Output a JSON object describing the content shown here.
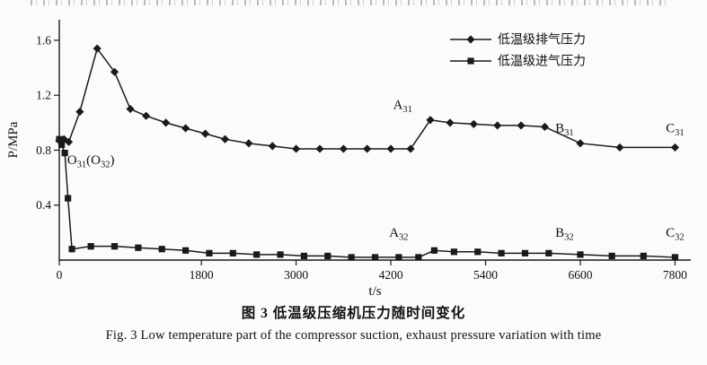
{
  "figure": {
    "caption_cn": "图 3  低温级压缩机压力随时间变化",
    "caption_en": "Fig. 3  Low temperature part of the compressor suction, exhaust pressure variation with time"
  },
  "chart_data": {
    "type": "line",
    "title": "",
    "xlabel": "t/s",
    "ylabel": "P/MPa",
    "xlim": [
      0,
      8000
    ],
    "ylim": [
      0,
      1.75
    ],
    "xticks": [
      0,
      1800,
      3000,
      4200,
      5400,
      6600,
      7800
    ],
    "xtick_labels": [
      "0",
      "1800",
      "3000",
      "4200",
      "5400",
      "6600",
      "7800"
    ],
    "yticks": [
      0.4,
      0.8,
      1.2,
      1.6
    ],
    "ytick_labels": [
      "0.4",
      "0.8",
      "1.2",
      "1.6"
    ],
    "grid": false,
    "legend_position": "top-right",
    "line_color": "#1a1a1a",
    "series": [
      {
        "name": "低温级排气压力",
        "marker": "diamond",
        "x": [
          0,
          60,
          120,
          260,
          480,
          700,
          900,
          1100,
          1350,
          1600,
          1850,
          2100,
          2400,
          2700,
          3000,
          3300,
          3600,
          3900,
          4200,
          4450,
          4700,
          4950,
          5250,
          5550,
          5850,
          6150,
          6600,
          7100,
          7800
        ],
        "y": [
          0.87,
          0.88,
          0.86,
          1.08,
          1.54,
          1.37,
          1.1,
          1.05,
          1.0,
          0.96,
          0.92,
          0.88,
          0.85,
          0.83,
          0.81,
          0.81,
          0.81,
          0.81,
          0.81,
          0.81,
          1.02,
          1.0,
          0.99,
          0.98,
          0.98,
          0.97,
          0.85,
          0.82,
          0.82
        ]
      },
      {
        "name": "低温级进气压力",
        "marker": "square",
        "x": [
          0,
          30,
          70,
          110,
          160,
          400,
          700,
          1000,
          1300,
          1600,
          1900,
          2200,
          2500,
          2800,
          3100,
          3400,
          3700,
          4000,
          4300,
          4550,
          4750,
          5000,
          5300,
          5600,
          5900,
          6200,
          6600,
          7000,
          7400,
          7800
        ],
        "y": [
          0.88,
          0.84,
          0.78,
          0.45,
          0.08,
          0.1,
          0.1,
          0.09,
          0.08,
          0.07,
          0.05,
          0.05,
          0.04,
          0.04,
          0.03,
          0.03,
          0.02,
          0.02,
          0.02,
          0.02,
          0.07,
          0.06,
          0.06,
          0.05,
          0.05,
          0.05,
          0.04,
          0.03,
          0.03,
          0.02
        ]
      }
    ],
    "annotations": [
      {
        "segments": [
          {
            "t": "O"
          },
          {
            "t": "31",
            "sub": true
          },
          {
            "t": "(O"
          },
          {
            "t": "32",
            "sub": true
          },
          {
            "t": ")"
          }
        ],
        "x": 100,
        "y": 0.7,
        "anchor": "start"
      },
      {
        "segments": [
          {
            "t": "A"
          },
          {
            "t": "31",
            "sub": true
          }
        ],
        "x": 4350,
        "y": 1.1,
        "anchor": "middle"
      },
      {
        "segments": [
          {
            "t": "B"
          },
          {
            "t": "31",
            "sub": true
          }
        ],
        "x": 6400,
        "y": 0.93,
        "anchor": "middle"
      },
      {
        "segments": [
          {
            "t": "C"
          },
          {
            "t": "31",
            "sub": true
          }
        ],
        "x": 7800,
        "y": 0.93,
        "anchor": "middle"
      },
      {
        "segments": [
          {
            "t": "A"
          },
          {
            "t": "32",
            "sub": true
          }
        ],
        "x": 4300,
        "y": 0.17,
        "anchor": "middle"
      },
      {
        "segments": [
          {
            "t": "B"
          },
          {
            "t": "32",
            "sub": true
          }
        ],
        "x": 6400,
        "y": 0.17,
        "anchor": "middle"
      },
      {
        "segments": [
          {
            "t": "C"
          },
          {
            "t": "32",
            "sub": true
          }
        ],
        "x": 7800,
        "y": 0.17,
        "anchor": "middle"
      }
    ]
  }
}
